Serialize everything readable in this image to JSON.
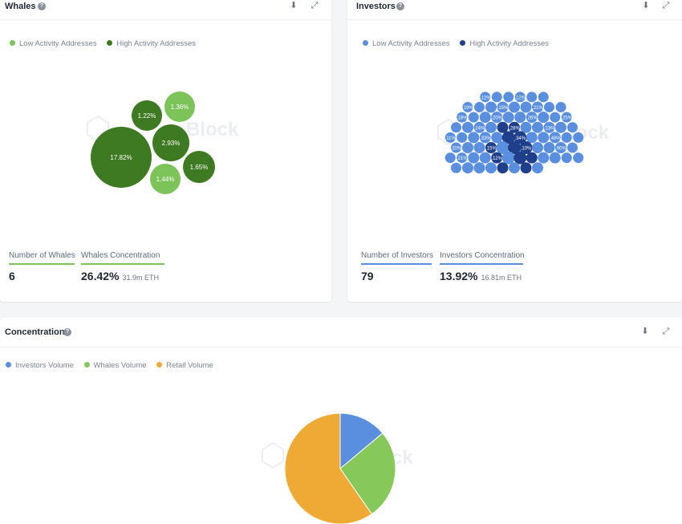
{
  "whales": {
    "title": "Whales",
    "legend": [
      {
        "label": "Low Activity Addresses",
        "color": "#7cc35a"
      },
      {
        "label": "High Activity Addresses",
        "color": "#3e7a21"
      }
    ],
    "bubbles": [
      {
        "label": "17.82%",
        "activity": "high"
      },
      {
        "label": "2.93%",
        "activity": "high"
      },
      {
        "label": "1.22%",
        "activity": "high"
      },
      {
        "label": "1.65%",
        "activity": "high"
      },
      {
        "label": "1.36%",
        "activity": "low"
      },
      {
        "label": "1.44%",
        "activity": "low"
      }
    ],
    "watermark": "IntoTheBlock",
    "count_label": "Number of Whales",
    "count_value": "6",
    "concentration_label": "Whales Concentration",
    "concentration_value": "26.42%",
    "concentration_sub": "31.9m ETH"
  },
  "investors": {
    "title": "Investors",
    "legend": [
      {
        "label": "Low Activity Addresses",
        "color": "#5a8fdf"
      },
      {
        "label": "High Activity Addresses",
        "color": "#1f3f8a"
      }
    ],
    "bubble_labels": [
      ".12%",
      ".12%",
      ".19%",
      ".15%",
      ".21%",
      ".18%",
      ".20%",
      ".26%",
      ".25%",
      ".24%",
      ".28%",
      ".13%",
      ".11%",
      ".33%",
      ".34%",
      ".48%",
      ".20%",
      ".15%",
      ".10%",
      ".90%",
      ".21%",
      ".12%"
    ],
    "count_label": "Number of Investors",
    "count_value": "79",
    "concentration_label": "Investors Concentration",
    "concentration_value": "13.92%",
    "concentration_sub": "16.81m ETH"
  },
  "concentration": {
    "title": "Concentration",
    "legend": [
      {
        "label": "Investors Volume",
        "color": "#5a8fdf"
      },
      {
        "label": "Whales Volume",
        "color": "#86c95a"
      },
      {
        "label": "Retail Volume",
        "color": "#eeaa35"
      }
    ]
  },
  "chart_data": {
    "type": "pie",
    "categories": [
      "Investors Volume",
      "Whales Volume",
      "Retail Volume"
    ],
    "values": [
      13.92,
      26.42,
      59.66
    ],
    "colors": [
      "#5a8fdf",
      "#86c95a",
      "#eeaa35"
    ]
  },
  "icons": {
    "help": "?",
    "download": "⬇",
    "expand": "⤢"
  }
}
